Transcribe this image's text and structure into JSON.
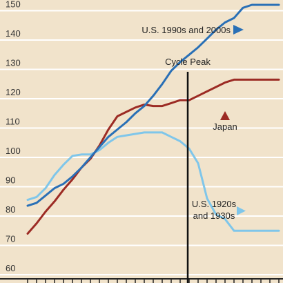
{
  "chart_data": {
    "type": "line",
    "title": "",
    "xlabel": "",
    "ylabel": "",
    "x": [
      -8,
      -7,
      -6,
      -5,
      -4,
      -3,
      -2,
      -1,
      0,
      1,
      2,
      3,
      4,
      5,
      6,
      7,
      8,
      9,
      10,
      11,
      12,
      13,
      14,
      15,
      16,
      17,
      18,
      19,
      20
    ],
    "ylim": [
      60,
      150
    ],
    "yticks": [
      60,
      70,
      80,
      90,
      100,
      110,
      120,
      130,
      140,
      150
    ],
    "grid": true,
    "series": [
      {
        "name": "U.S. 1990s and 2000s",
        "color": "#2a70b6",
        "marker": "triangle-right",
        "values": [
          83.5,
          84.5,
          87,
          89.5,
          91,
          93.5,
          96.5,
          100,
          103.5,
          107,
          109.5,
          112,
          115,
          117.5,
          121,
          125,
          129.5,
          132.5,
          135,
          137.5,
          140.5,
          143.5,
          146,
          147.5,
          151,
          152,
          152,
          152,
          152
        ]
      },
      {
        "name": "Japan",
        "color": "#9c2b24",
        "marker": "triangle-up",
        "values": [
          74,
          77.5,
          81.5,
          85,
          89,
          92.5,
          96.5,
          99.5,
          104,
          109.5,
          114,
          115.5,
          117,
          118,
          117.5,
          117.5,
          118.5,
          119.5,
          119.5,
          121,
          122.5,
          124,
          125.5,
          126.5,
          126.5,
          126.5,
          126.5,
          126.5,
          126.5
        ]
      },
      {
        "name": "U.S. 1920s and 1930s",
        "color": "#7fc6ea",
        "marker": "triangle-right",
        "values": [
          85.5,
          86.5,
          89.5,
          94,
          97.5,
          100.5,
          101,
          101,
          102.5,
          105,
          107,
          107.5,
          108,
          108.5,
          108.5,
          108.5,
          107,
          105.5,
          103,
          98,
          86,
          80.5,
          79,
          75,
          75,
          75,
          75,
          75,
          75
        ]
      }
    ],
    "annotations": [
      {
        "text": "Cycle Peak",
        "x": 7.5
      },
      {
        "text": "U.S. 1990s and 2000s"
      },
      {
        "text": "Japan"
      },
      {
        "text": "U.S. 1920s"
      },
      {
        "text": "and 1930s"
      }
    ]
  }
}
